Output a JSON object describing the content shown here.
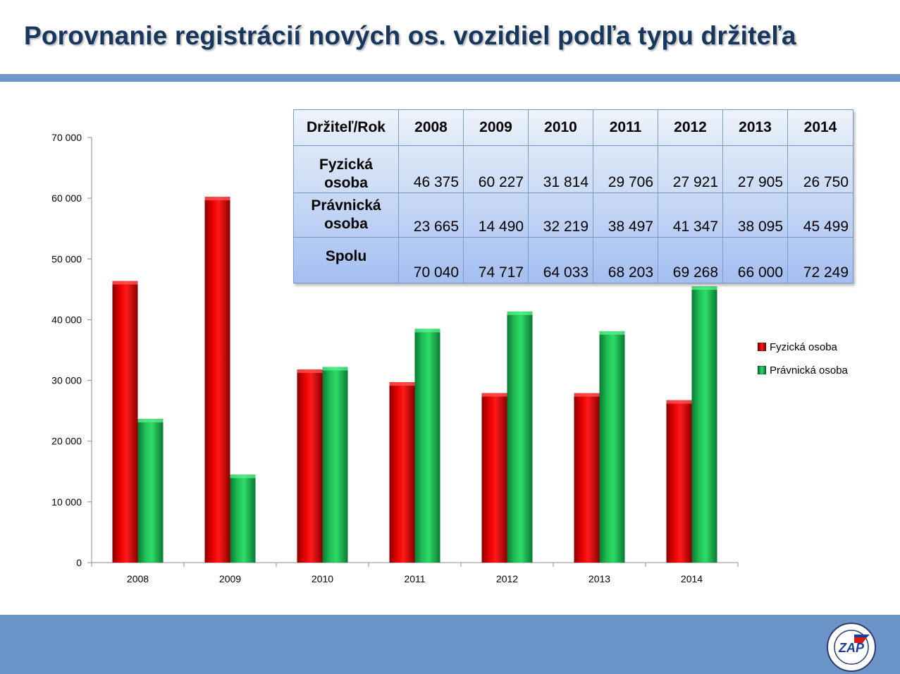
{
  "title": "Porovnanie registrácií nových os. vozidiel podľa typu držiteľa",
  "table": {
    "header": [
      "Držiteľ/Rok",
      "2008",
      "2009",
      "2010",
      "2011",
      "2012",
      "2013",
      "2014"
    ],
    "rows": [
      {
        "label": "Fyzická osoba",
        "values": [
          "46 375",
          "60 227",
          "31 814",
          "29 706",
          "27 921",
          "27 905",
          "26 750"
        ]
      },
      {
        "label": "Právnická osoba",
        "values": [
          "23 665",
          "14 490",
          "32 219",
          "38 497",
          "41 347",
          "38 095",
          "45 499"
        ]
      },
      {
        "label": "Spolu",
        "values": [
          "70 040",
          "74 717",
          "64 033",
          "68 203",
          "69 268",
          "66 000",
          "72 249"
        ]
      }
    ]
  },
  "logo": {
    "text": "ZAP"
  },
  "chart_data": {
    "type": "bar",
    "categories": [
      "2008",
      "2009",
      "2010",
      "2011",
      "2012",
      "2013",
      "2014"
    ],
    "series": [
      {
        "name": "Fyzická osoba",
        "color": "#e00000",
        "values": [
          46375,
          60227,
          31814,
          29706,
          27921,
          27905,
          26750
        ]
      },
      {
        "name": "Právnická osoba",
        "color": "#1fbf56",
        "values": [
          23665,
          14490,
          32219,
          38497,
          41347,
          38095,
          45499
        ]
      }
    ],
    "ylim": [
      0,
      70000
    ],
    "yticks": [
      0,
      10000,
      20000,
      30000,
      40000,
      50000,
      60000,
      70000
    ],
    "ytick_labels": [
      "0",
      "10 000",
      "20 000",
      "30 000",
      "40 000",
      "50 000",
      "60 000",
      "70 000"
    ],
    "legend_position": "right",
    "grid": false
  }
}
